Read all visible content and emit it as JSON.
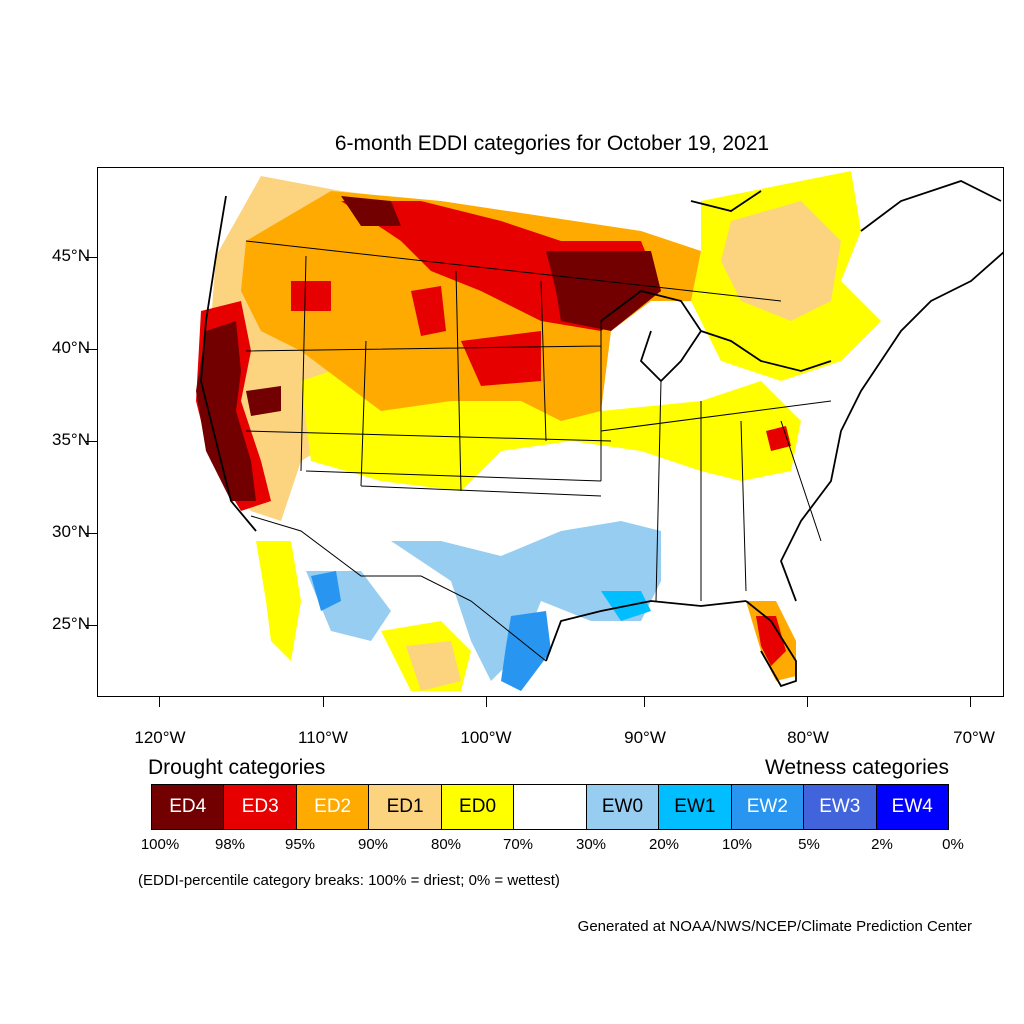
{
  "title": "6-month EDDI categories for October 19, 2021",
  "axes": {
    "lat_labels": [
      "45°N",
      "40°N",
      "35°N",
      "30°N",
      "25°N"
    ],
    "lon_labels": [
      "120°W",
      "110°W",
      "100°W",
      "90°W",
      "80°W",
      "70°W"
    ]
  },
  "legend": {
    "drought_heading": "Drought categories",
    "wetness_heading": "Wetness categories",
    "categories": [
      {
        "label": "ED4",
        "color": "#730000",
        "text_color": "#ffffff"
      },
      {
        "label": "ED3",
        "color": "#e60000",
        "text_color": "#ffffff"
      },
      {
        "label": "ED2",
        "color": "#ffaa00",
        "text_color": "#ffffff"
      },
      {
        "label": "ED1",
        "color": "#fcd37f",
        "text_color": "#000000"
      },
      {
        "label": "ED0",
        "color": "#ffff00",
        "text_color": "#000000"
      },
      {
        "label": "",
        "color": "#ffffff",
        "text_color": "#000000"
      },
      {
        "label": "EW0",
        "color": "#96cdf0",
        "text_color": "#000000"
      },
      {
        "label": "EW1",
        "color": "#00beff",
        "text_color": "#000000"
      },
      {
        "label": "EW2",
        "color": "#2896f0",
        "text_color": "#ffffff"
      },
      {
        "label": "EW3",
        "color": "#4164dc",
        "text_color": "#ffffff"
      },
      {
        "label": "EW4",
        "color": "#0000ff",
        "text_color": "#ffffff"
      }
    ],
    "percentiles": [
      "100%",
      "98%",
      "95%",
      "90%",
      "80%",
      "70%",
      "30%",
      "20%",
      "10%",
      "5%",
      "2%",
      "0%"
    ]
  },
  "note": "(EDDI-percentile category breaks: 100% = driest; 0% = wettest)",
  "credit": "Generated at NOAA/NWS/NCEP/Climate Prediction Center"
}
